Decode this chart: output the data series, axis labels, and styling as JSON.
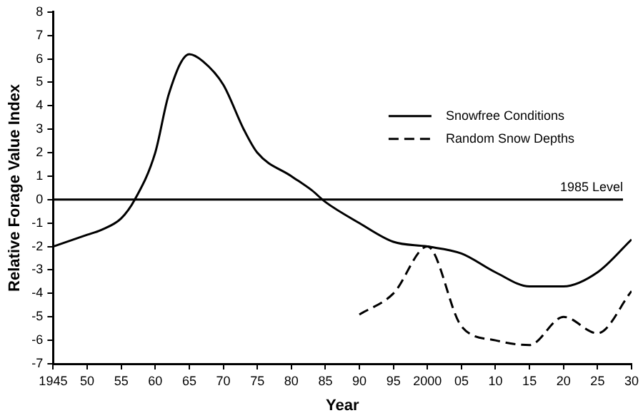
{
  "chart_data": {
    "type": "line",
    "xlabel": "Year",
    "ylabel": "Relative Forage Value Index",
    "series": [
      {
        "name": "Snowfree Conditions",
        "color": "#000000",
        "line_style": "solid",
        "x": [
          1945,
          1950,
          1952,
          1955,
          1957,
          1960,
          1962,
          1965,
          1967,
          1970,
          1973,
          1975,
          1980,
          1983,
          1985,
          1990,
          1995,
          2000,
          2005,
          2010,
          2015,
          2020,
          2025,
          2030
        ],
        "values": [
          -2,
          -1.5,
          -1.3,
          -0.8,
          0,
          2,
          4.5,
          6.2,
          5.9,
          4.9,
          3,
          2,
          1,
          0.4,
          -0.1,
          -1,
          -1.8,
          -2,
          -2.3,
          -3.1,
          -3.7,
          -3.7,
          -3.1,
          -1.7
        ]
      },
      {
        "name": "Random Snow Depths",
        "color": "#000000",
        "line_style": "dashed",
        "x": [
          1990,
          1995,
          2000,
          2005,
          2010,
          2015,
          2020,
          2025,
          2030
        ],
        "values": [
          -4.9,
          -4,
          -2,
          -5.4,
          -6,
          -6.2,
          -5,
          -5.7,
          -3.9
        ]
      }
    ],
    "xlim": [
      1945,
      2030
    ],
    "xticks": [
      1945,
      {
        "value": 1950,
        "label": "50"
      },
      {
        "value": 1955,
        "label": "55"
      },
      {
        "value": 1960,
        "label": "60"
      },
      {
        "value": 1965,
        "label": "65"
      },
      {
        "value": 1970,
        "label": "70"
      },
      {
        "value": 1975,
        "label": "75"
      },
      {
        "value": 1980,
        "label": "80"
      },
      {
        "value": 1985,
        "label": "85"
      },
      {
        "value": 1990,
        "label": "90"
      },
      {
        "value": 1995,
        "label": "95"
      },
      2000,
      {
        "value": 2005,
        "label": "05"
      },
      {
        "value": 2010,
        "label": "10"
      },
      {
        "value": 2015,
        "label": "15"
      },
      {
        "value": 2020,
        "label": "20"
      },
      {
        "value": 2025,
        "label": "25"
      },
      {
        "value": 2030,
        "label": "30"
      }
    ],
    "ylim": [
      -7,
      8
    ],
    "yticks": [
      -7,
      -6,
      -5,
      -4,
      -3,
      -2,
      -1,
      0,
      1,
      2,
      3,
      4,
      5,
      6,
      7,
      8
    ],
    "ref_lines": [
      {
        "axis": "y",
        "value": 0,
        "label": "1985 Level",
        "color": "#000000"
      }
    ],
    "legend": "top right",
    "marker": "none",
    "grid": false
  }
}
